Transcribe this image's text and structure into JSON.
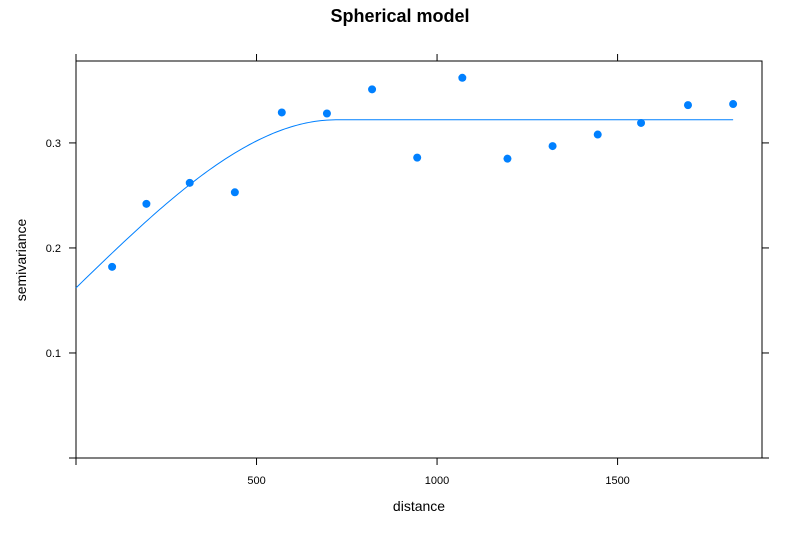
{
  "chart_data": {
    "type": "scatter",
    "title": "Spherical model",
    "xlabel": "distance",
    "ylabel": "semivariance",
    "xlim": [
      0,
      1900
    ],
    "ylim": [
      0,
      0.378
    ],
    "xticks": [
      500,
      1000,
      1500
    ],
    "xtick_labels": [
      "500",
      "1000",
      "1500"
    ],
    "yticks": [
      0.1,
      0.2,
      0.3
    ],
    "ytick_labels": [
      "0.1",
      "0.2",
      "0.3"
    ],
    "grid": false,
    "legend": "none",
    "colors": {
      "points": "#0080ff",
      "line": "#0080ff",
      "axis": "#000000"
    },
    "points": {
      "x": [
        100,
        195,
        315,
        440,
        570,
        695,
        820,
        945,
        1070,
        1195,
        1320,
        1445,
        1565,
        1695,
        1820
      ],
      "y": [
        0.182,
        0.242,
        0.262,
        0.253,
        0.329,
        0.328,
        0.351,
        0.286,
        0.362,
        0.285,
        0.297,
        0.308,
        0.319,
        0.336,
        0.337
      ]
    },
    "model": {
      "type": "spherical",
      "nugget": 0.162,
      "partial_sill": 0.16,
      "range": 720,
      "x_end": 1820
    }
  }
}
